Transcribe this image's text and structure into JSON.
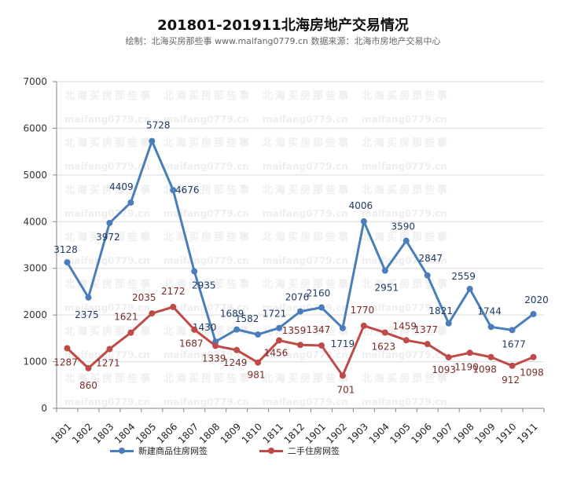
{
  "title": "201801-201911北海房地产交易情况",
  "subtitle": "绘制：北海买房那些事 www.maifang0779.cn  数据来源：北海市房地产交易中心",
  "watermark_line1": "北海买房那些事",
  "watermark_line2": "maifang0779.cn",
  "chart_data": {
    "type": "line",
    "title": "201801-201911北海房地产交易情况",
    "categories": [
      "1801",
      "1802",
      "1803",
      "1804",
      "1805",
      "1806",
      "1807",
      "1808",
      "1809",
      "1810",
      "1811",
      "1812",
      "1901",
      "1902",
      "1903",
      "1904",
      "1905",
      "1906",
      "1907",
      "1908",
      "1909",
      "1910",
      "1911"
    ],
    "ylim": [
      0,
      7000
    ],
    "yticks": [
      0,
      1000,
      2000,
      3000,
      4000,
      5000,
      6000,
      7000
    ],
    "grid": true,
    "legend_position": "bottom",
    "series": [
      {
        "name": "新建商品住房网签",
        "color": "#4a7ebb",
        "values": [
          3128,
          2375,
          3972,
          4409,
          5728,
          4676,
          2935,
          1430,
          1689,
          1582,
          1721,
          2076,
          2160,
          1719,
          4006,
          2951,
          3590,
          2847,
          1821,
          2559,
          1744,
          1677,
          2020
        ]
      },
      {
        "name": "二手住房网签",
        "color": "#be4b48",
        "values": [
          1287,
          860,
          1271,
          1621,
          2035,
          2172,
          1687,
          1339,
          1249,
          981,
          1456,
          1359,
          1347,
          701,
          1770,
          1623,
          1459,
          1377,
          1093,
          1190,
          1098,
          912,
          1098
        ]
      }
    ]
  }
}
